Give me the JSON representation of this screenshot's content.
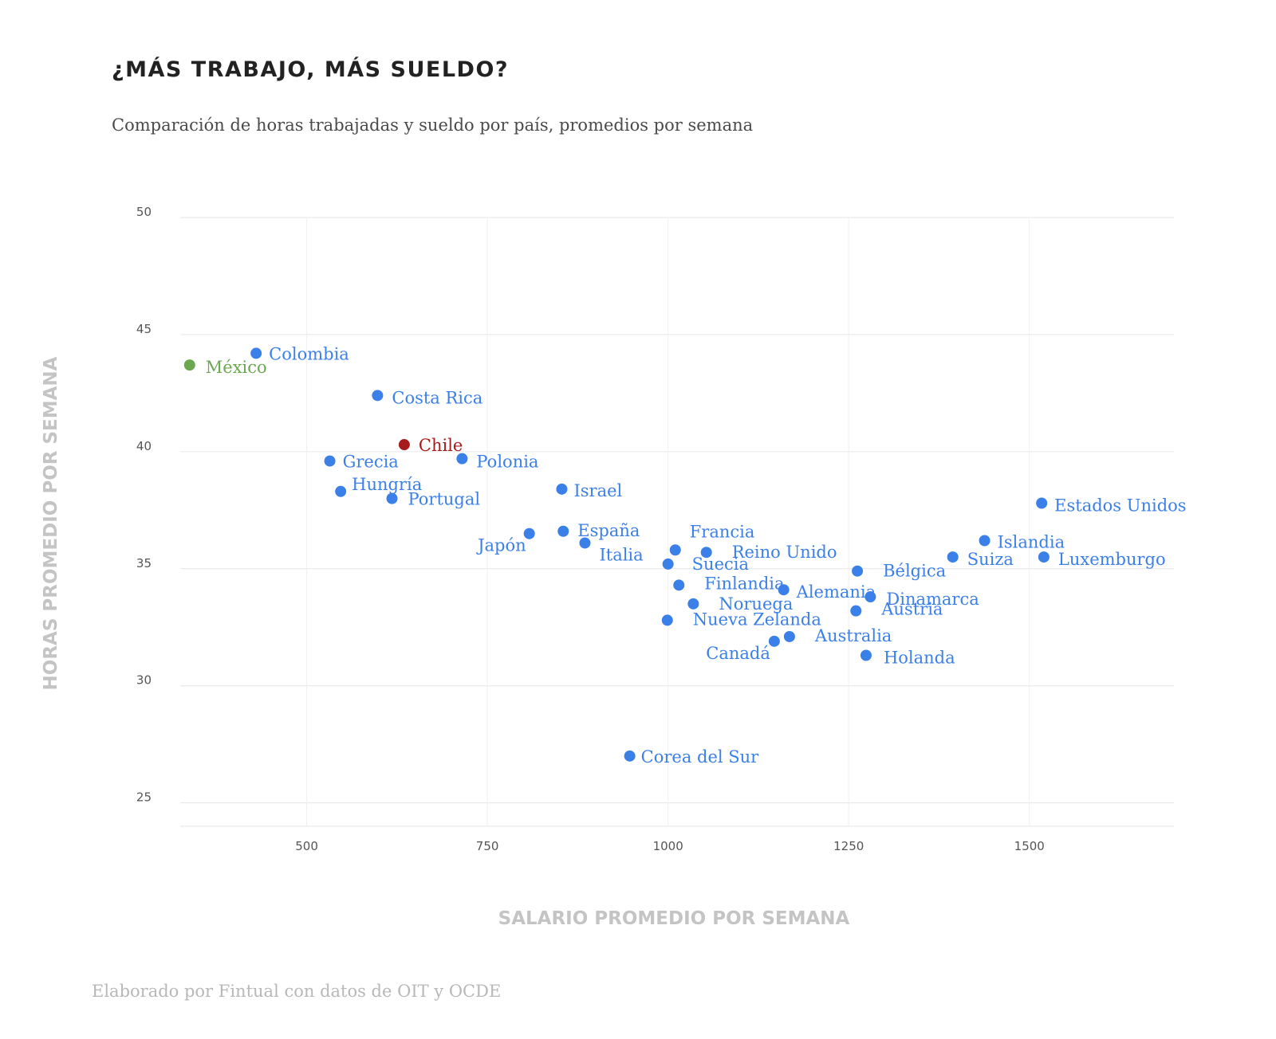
{
  "header": {
    "title": "¿MÁS TRABAJO, MÁS SUELDO?",
    "subtitle": "Comparación de horas trabajadas y sueldo por país, promedios por semana"
  },
  "footer": {
    "source": "Elaborado por Fintual con datos de OIT y OCDE"
  },
  "colors": {
    "default": "#3b7fe8",
    "mexico": "#6aa84f",
    "chile": "#a61c1c",
    "grid": "#e6e6e6"
  },
  "chart_data": {
    "type": "scatter",
    "title": "¿MÁS TRABAJO, MÁS SUELDO?",
    "xlabel": "SALARIO PROMEDIO POR SEMANA",
    "ylabel": "HORAS PROMEDIO POR SEMANA",
    "xlim": [
      325,
      1700
    ],
    "ylim": [
      24,
      50
    ],
    "xticks": [
      500,
      750,
      1000,
      1250,
      1500
    ],
    "yticks": [
      25,
      30,
      35,
      40,
      45,
      50
    ],
    "grid": true,
    "points": [
      {
        "name": "México",
        "x": 338,
        "y": 43.7,
        "color": "mexico"
      },
      {
        "name": "Colombia",
        "x": 430,
        "y": 44.2
      },
      {
        "name": "Costa Rica",
        "x": 598,
        "y": 42.4
      },
      {
        "name": "Chile",
        "x": 635,
        "y": 40.3,
        "color": "chile"
      },
      {
        "name": "Grecia",
        "x": 532,
        "y": 39.6
      },
      {
        "name": "Polonia",
        "x": 715,
        "y": 39.7
      },
      {
        "name": "Hungría",
        "x": 547,
        "y": 38.3
      },
      {
        "name": "Portugal",
        "x": 618,
        "y": 38.0
      },
      {
        "name": "Israel",
        "x": 853,
        "y": 38.4
      },
      {
        "name": "Estados Unidos",
        "x": 1517,
        "y": 37.8
      },
      {
        "name": "Japón",
        "x": 808,
        "y": 36.5
      },
      {
        "name": "España",
        "x": 855,
        "y": 36.6
      },
      {
        "name": "Italia",
        "x": 885,
        "y": 36.1
      },
      {
        "name": "Francia",
        "x": 1010,
        "y": 35.8
      },
      {
        "name": "Reino Unido",
        "x": 1053,
        "y": 35.7
      },
      {
        "name": "Suecia",
        "x": 1000,
        "y": 35.2
      },
      {
        "name": "Islandia",
        "x": 1438,
        "y": 36.2
      },
      {
        "name": "Suiza",
        "x": 1394,
        "y": 35.5
      },
      {
        "name": "Luxemburgo",
        "x": 1520,
        "y": 35.5
      },
      {
        "name": "Bélgica",
        "x": 1262,
        "y": 34.9
      },
      {
        "name": "Finlandia",
        "x": 1015,
        "y": 34.3
      },
      {
        "name": "Alemania",
        "x": 1160,
        "y": 34.1
      },
      {
        "name": "Dinamarca",
        "x": 1280,
        "y": 33.8
      },
      {
        "name": "Noruega",
        "x": 1035,
        "y": 33.5
      },
      {
        "name": "Austria",
        "x": 1260,
        "y": 33.2
      },
      {
        "name": "Nueva Zelanda",
        "x": 999,
        "y": 32.8
      },
      {
        "name": "Australia",
        "x": 1168,
        "y": 32.1
      },
      {
        "name": "Canadá",
        "x": 1147,
        "y": 31.9
      },
      {
        "name": "Holanda",
        "x": 1274,
        "y": 31.3
      },
      {
        "name": "Corea del Sur",
        "x": 947,
        "y": 27.0
      }
    ]
  }
}
